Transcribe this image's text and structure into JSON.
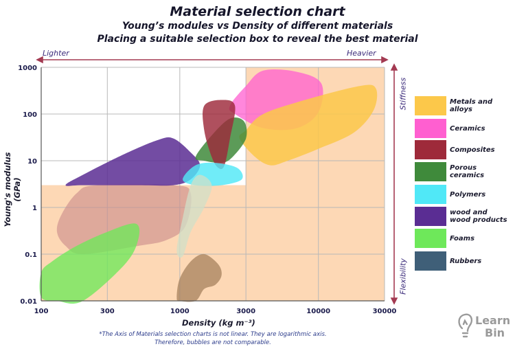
{
  "title": "Material selection chart",
  "subtitle1": "Young’s modules vs Density of different materials",
  "subtitle2": "Placing a suitable selection box to reveal the best material",
  "top_arrow": {
    "left": "Lighter",
    "right": "Heavier"
  },
  "side_arrow": {
    "top": "Stiffness",
    "bottom": "Flexibility"
  },
  "logo": {
    "line1": "Learn",
    "line2": "Bin"
  },
  "footnote": {
    "line1": "*The Axis of Materials selection charts is not linear. They are logarithmic axis.",
    "line2": "Therefore, bubbles are not comparable."
  },
  "chart_data": {
    "type": "scatter",
    "title": "Material selection chart",
    "xlabel": "Density (kg m⁻³)",
    "ylabel": "Young's modulus (GPa)",
    "x_scale": "log",
    "y_scale": "log",
    "xlim": [
      100,
      30000
    ],
    "ylim": [
      0.01,
      1000
    ],
    "x_ticks": [
      100,
      300,
      1000,
      3000,
      10000,
      30000
    ],
    "x_tick_labels": [
      "100",
      "300",
      "1000",
      "3000",
      "10000",
      "30000"
    ],
    "y_ticks": [
      1000,
      100,
      10,
      1,
      0.1,
      0.01
    ],
    "y_tick_labels": [
      "1000",
      "100",
      "10",
      "1",
      "0.1",
      "0.01"
    ],
    "grid": true,
    "selection_regions": [
      {
        "name": "high-density-region",
        "density_min": 3000,
        "density_max": 30000,
        "modulus_min": 0.01,
        "modulus_max": 1000,
        "color": "#fdd8b5"
      },
      {
        "name": "low-modulus-region",
        "density_min": 100,
        "density_max": 3000,
        "modulus_min": 0.01,
        "modulus_max": 3,
        "color": "#fdd8b5"
      }
    ],
    "series": [
      {
        "name": "Metals and alloys",
        "legend": "Metals and\nalloys",
        "color": "#fcc84a",
        "opacity": 0.85,
        "outline": [
          [
            3000,
            45
          ],
          [
            4000,
            100
          ],
          [
            8000,
            200
          ],
          [
            20000,
            400
          ],
          [
            26000,
            350
          ],
          [
            25000,
            120
          ],
          [
            18000,
            40
          ],
          [
            10000,
            18
          ],
          [
            6000,
            10
          ],
          [
            4500,
            8
          ],
          [
            3500,
            12
          ],
          [
            2700,
            30
          ]
        ]
      },
      {
        "name": "Ceramics",
        "legend": "Ceramics",
        "color": "#ff5fd0",
        "opacity": 0.75,
        "outline": [
          [
            2300,
            150
          ],
          [
            3000,
            400
          ],
          [
            4000,
            850
          ],
          [
            7000,
            800
          ],
          [
            10500,
            450
          ],
          [
            10000,
            110
          ],
          [
            7000,
            50
          ],
          [
            4000,
            50
          ],
          [
            2500,
            100
          ]
        ]
      },
      {
        "name": "Composites",
        "legend": "Composites",
        "color": "#9e2a3a",
        "opacity": 0.82,
        "outline": [
          [
            1500,
            150
          ],
          [
            2000,
            200
          ],
          [
            2500,
            150
          ],
          [
            2300,
            30
          ],
          [
            2100,
            8
          ],
          [
            1900,
            7
          ],
          [
            1700,
            12
          ],
          [
            1500,
            45
          ]
        ]
      },
      {
        "name": "Porous ceramics",
        "legend": "Porous\nceramics",
        "color": "#3f8a3b",
        "opacity": 0.85,
        "outline": [
          [
            1300,
            12
          ],
          [
            1700,
            35
          ],
          [
            2300,
            80
          ],
          [
            2900,
            70
          ],
          [
            3000,
            30
          ],
          [
            2400,
            12
          ],
          [
            2000,
            9
          ],
          [
            1500,
            10
          ]
        ]
      },
      {
        "name": "Polymers",
        "legend": "Polymers",
        "color": "#50e8f7",
        "opacity": 0.82,
        "outline": [
          [
            1050,
            4
          ],
          [
            1300,
            8
          ],
          [
            1800,
            9
          ],
          [
            2600,
            7
          ],
          [
            2800,
            4
          ],
          [
            2000,
            3
          ],
          [
            1300,
            3
          ]
        ]
      },
      {
        "name": "wood and wood products",
        "legend": "wood and\nwood products",
        "color": "#5a2d93",
        "opacity": 0.85,
        "outline": [
          [
            150,
            3
          ],
          [
            200,
            5
          ],
          [
            400,
            14
          ],
          [
            700,
            28
          ],
          [
            900,
            30
          ],
          [
            1200,
            15
          ],
          [
            1400,
            8
          ],
          [
            1200,
            4
          ],
          [
            900,
            3
          ],
          [
            500,
            3
          ],
          [
            200,
            3
          ]
        ]
      },
      {
        "name": "Foams",
        "legend": "Foams",
        "color": "#6ee85a",
        "opacity": 0.78,
        "outline": [
          [
            100,
            0.04
          ],
          [
            100,
            0.012
          ],
          [
            130,
            0.01
          ],
          [
            200,
            0.01
          ],
          [
            400,
            0.06
          ],
          [
            500,
            0.2
          ],
          [
            480,
            0.45
          ],
          [
            300,
            0.3
          ],
          [
            180,
            0.15
          ],
          [
            120,
            0.07
          ]
        ]
      },
      {
        "name": "Rubbers",
        "legend": "Rubbers",
        "color": "#3f5f78",
        "opacity": 0.82,
        "outline": []
      }
    ],
    "extra_regions": [
      {
        "name": "wood-transverse-region",
        "color": "#c98a8a",
        "opacity": 0.6,
        "outline": [
          [
            130,
            0.3
          ],
          [
            140,
            0.7
          ],
          [
            180,
            2
          ],
          [
            250,
            3
          ],
          [
            900,
            3
          ],
          [
            1200,
            2
          ],
          [
            1100,
            0.4
          ],
          [
            800,
            0.2
          ],
          [
            500,
            0.15
          ],
          [
            200,
            0.1
          ],
          [
            150,
            0.15
          ]
        ]
      },
      {
        "name": "polymer-tail-region",
        "color": "#d0e0c8",
        "opacity": 0.75,
        "outline": [
          [
            950,
            0.12
          ],
          [
            1050,
            0.6
          ],
          [
            1200,
            3
          ],
          [
            1400,
            5
          ],
          [
            1700,
            3
          ],
          [
            1500,
            1
          ],
          [
            1200,
            0.3
          ],
          [
            1050,
            0.09
          ]
        ]
      },
      {
        "name": "rubber-region",
        "color": "#a6825e",
        "opacity": 0.75,
        "outline": [
          [
            950,
            0.012
          ],
          [
            1000,
            0.03
          ],
          [
            1200,
            0.07
          ],
          [
            1500,
            0.1
          ],
          [
            1900,
            0.06
          ],
          [
            2000,
            0.035
          ],
          [
            1800,
            0.022
          ],
          [
            1500,
            0.018
          ],
          [
            1300,
            0.01
          ],
          [
            1000,
            0.01
          ]
        ]
      }
    ]
  }
}
